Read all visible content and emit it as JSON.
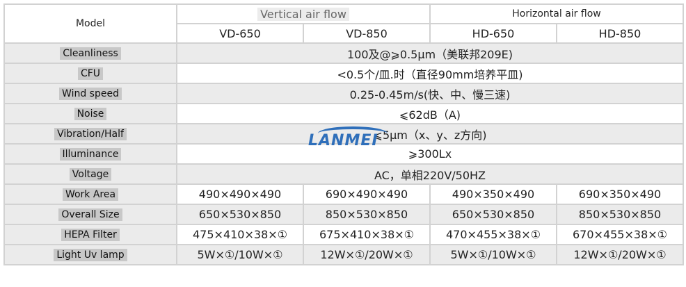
{
  "header": {
    "model_label": "Model",
    "groups": [
      "Vertical air flow",
      "Horizontal air flow"
    ],
    "models": [
      "VD-650",
      "VD-850",
      "HD-650",
      "HD-850"
    ]
  },
  "rows": [
    {
      "label": "Cleanliness",
      "value": "100及@⩾0.5μm（美联邦209E)"
    },
    {
      "label": "CFU",
      "value": "<0.5个/皿.时（直径90mm培养平皿)"
    },
    {
      "label": "Wind speed",
      "value": "0.25-0.45m/s(快、中、慢三速)"
    },
    {
      "label": "Noise",
      "value": "⩽62dB（A)"
    },
    {
      "label": "Vibration/Half",
      "value": "⩽5μm（x、y、z方向)"
    },
    {
      "label": "Illuminance",
      "value": "⩾300Lx"
    },
    {
      "label": "Voltage",
      "value": "AC，单相220V/50HZ"
    },
    {
      "label": "Work Area",
      "values": [
        "490×490×490",
        "690×490×490",
        "490×350×490",
        "690×350×490"
      ]
    },
    {
      "label": "Overall Size",
      "values": [
        "650×530×850",
        "850×530×850",
        "650×530×850",
        "850×530×850"
      ]
    },
    {
      "label": "HEPA Filter",
      "values": [
        "475×410×38×①",
        "675×410×38×①",
        "470×455×38×①",
        "670×455×38×①"
      ]
    },
    {
      "label": "Light Uv lamp",
      "values": [
        "5W×①/10W×①",
        "12W×①/20W×①",
        "5W×①/10W×①",
        "12W×①/20W×①"
      ]
    }
  ],
  "watermark": "LANMEI"
}
